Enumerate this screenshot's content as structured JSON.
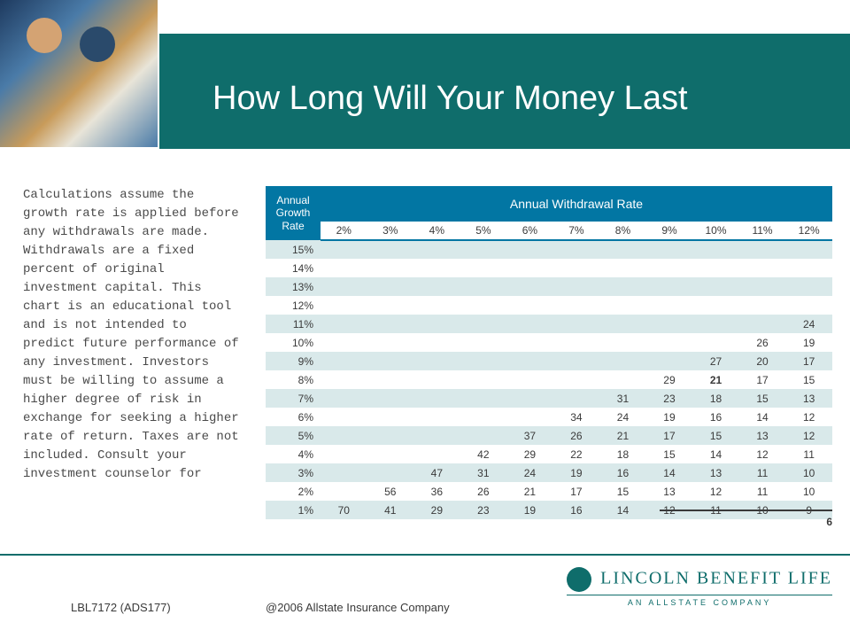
{
  "slide": {
    "title": "How Long Will Your Money Last",
    "page_number": "6"
  },
  "body_text": "Calculations assume the growth rate is applied before any withdrawals are made. Withdrawals are a fixed percent of original investment capital. This chart is an educational tool and is not intended to predict future performance of any investment. Investors must be willing to assume a higher degree of risk in exchange for seeking a higher rate of return. Taxes are not included. Consult your investment counselor for",
  "table": {
    "type": "table",
    "corner_label_1": "Annual",
    "corner_label_2": "Growth",
    "corner_label_3": "Rate",
    "top_header": "Annual Withdrawal Rate",
    "col_headers": [
      "2%",
      "3%",
      "4%",
      "5%",
      "6%",
      "7%",
      "8%",
      "9%",
      "10%",
      "11%",
      "12%"
    ],
    "row_headers": [
      "15%",
      "14%",
      "13%",
      "12%",
      "11%",
      "10%",
      "9%",
      "8%",
      "7%",
      "6%",
      "5%",
      "4%",
      "3%",
      "2%",
      "1%"
    ],
    "rows": [
      [
        "",
        "",
        "",
        "",
        "",
        "",
        "",
        "",
        "",
        "",
        ""
      ],
      [
        "",
        "",
        "",
        "",
        "",
        "",
        "",
        "",
        "",
        "",
        ""
      ],
      [
        "",
        "",
        "",
        "",
        "",
        "",
        "",
        "",
        "",
        "",
        ""
      ],
      [
        "",
        "",
        "",
        "",
        "",
        "",
        "",
        "",
        "",
        "",
        ""
      ],
      [
        "",
        "",
        "",
        "",
        "",
        "",
        "",
        "",
        "",
        "",
        "24"
      ],
      [
        "",
        "",
        "",
        "",
        "",
        "",
        "",
        "",
        "",
        "26",
        "19"
      ],
      [
        "",
        "",
        "",
        "",
        "",
        "",
        "",
        "",
        "27",
        "20",
        "17"
      ],
      [
        "",
        "",
        "",
        "",
        "",
        "",
        "",
        "29",
        "21",
        "17",
        "15"
      ],
      [
        "",
        "",
        "",
        "",
        "",
        "",
        "31",
        "23",
        "18",
        "15",
        "13"
      ],
      [
        "",
        "",
        "",
        "",
        "",
        "34",
        "24",
        "19",
        "16",
        "14",
        "12"
      ],
      [
        "",
        "",
        "",
        "",
        "37",
        "26",
        "21",
        "17",
        "15",
        "13",
        "12"
      ],
      [
        "",
        "",
        "",
        "42",
        "29",
        "22",
        "18",
        "15",
        "14",
        "12",
        "11"
      ],
      [
        "",
        "",
        "47",
        "31",
        "24",
        "19",
        "16",
        "14",
        "13",
        "11",
        "10"
      ],
      [
        "",
        "56",
        "36",
        "26",
        "21",
        "17",
        "15",
        "13",
        "12",
        "11",
        "10"
      ],
      [
        "70",
        "41",
        "29",
        "23",
        "19",
        "16",
        "14",
        "12",
        "11",
        "10",
        "9"
      ]
    ],
    "bold_cells": [
      [
        7,
        8
      ]
    ],
    "colors": {
      "header_bg": "#0276a3",
      "stripe": "#d9e9ea",
      "text": "#3a3a3a"
    }
  },
  "footer": {
    "left": "LBL7172 (ADS177)",
    "center": "@2006 Allstate Insurance Company"
  },
  "logo": {
    "main": "LINCOLN BENEFIT LIFE",
    "sub": "AN ALLSTATE COMPANY"
  },
  "colors": {
    "brand_teal": "#0f6d6b",
    "table_blue": "#0276a3",
    "background": "#ffffff"
  }
}
